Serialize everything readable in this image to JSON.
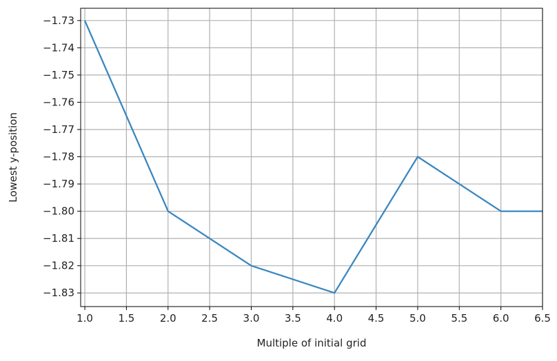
{
  "chart_data": {
    "type": "line",
    "title": "",
    "xlabel": "Multiple of initial grid",
    "ylabel": "Lowest y-position",
    "xlim": [
      0.95,
      6.5
    ],
    "ylim": [
      -1.835,
      -1.7255
    ],
    "grid": true,
    "x_ticks": [
      1.0,
      1.5,
      2.0,
      2.5,
      3.0,
      3.5,
      4.0,
      4.5,
      5.0,
      5.5,
      6.0,
      6.5
    ],
    "x_tick_labels": [
      "1.0",
      "1.5",
      "2.0",
      "2.5",
      "3.0",
      "3.5",
      "4.0",
      "4.5",
      "5.0",
      "5.5",
      "6.0",
      "6.5"
    ],
    "y_ticks": [
      -1.73,
      -1.74,
      -1.75,
      -1.76,
      -1.77,
      -1.78,
      -1.79,
      -1.8,
      -1.81,
      -1.82,
      -1.83
    ],
    "y_tick_labels": [
      "−1.73",
      "−1.74",
      "−1.75",
      "−1.76",
      "−1.77",
      "−1.78",
      "−1.79",
      "−1.80",
      "−1.81",
      "−1.82",
      "−1.83"
    ],
    "series": [
      {
        "color": "#3a87c0",
        "x": [
          1,
          2,
          3,
          4,
          5,
          6,
          7
        ],
        "y": [
          -1.73,
          -1.8,
          -1.82,
          -1.83,
          -1.78,
          -1.8,
          -1.8
        ]
      }
    ]
  }
}
